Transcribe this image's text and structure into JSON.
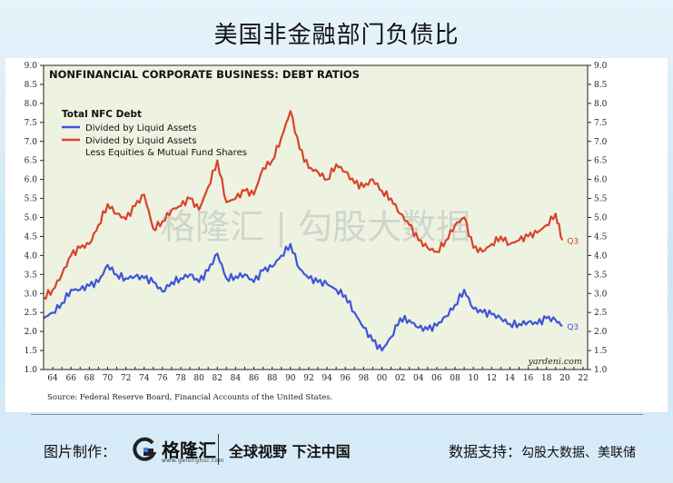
{
  "page": {
    "title": "美国非金融部门负债比",
    "source_note": "Source: Federal Reserve Board, Financial Accounts of the United States.",
    "watermark": "格隆汇 | 勾股大数据",
    "footer": {
      "made_by_label": "图片制作：",
      "logo_text": "格隆汇",
      "logo_sub": "www.gelonghui.com",
      "slogan": "全球视野 下注中国",
      "data_support_label": "数据支持：",
      "data_support_value": "勾股大数据、美联储"
    }
  },
  "chart_data": {
    "type": "line",
    "title": "NONFINANCIAL CORPORATE BUSINESS: DEBT RATIOS",
    "legend_title": "Total NFC Debt",
    "legend_position": "top-left",
    "credit": "yardeni.com",
    "x_ticks": [
      "64",
      "66",
      "68",
      "70",
      "72",
      "74",
      "76",
      "78",
      "80",
      "82",
      "84",
      "86",
      "88",
      "90",
      "92",
      "94",
      "96",
      "98",
      "00",
      "02",
      "04",
      "06",
      "08",
      "10",
      "12",
      "14",
      "16",
      "18",
      "20",
      "22"
    ],
    "xlim": [
      1963,
      2022.5
    ],
    "ylim": [
      1.0,
      9.0
    ],
    "y_ticks": [
      "1.0",
      "1.5",
      "2.0",
      "2.5",
      "3.0",
      "3.5",
      "4.0",
      "4.5",
      "5.0",
      "5.5",
      "6.0",
      "6.5",
      "7.0",
      "7.5",
      "8.0",
      "8.5",
      "9.0"
    ],
    "grid": false,
    "colors": {
      "blue": "#3d55d8",
      "red": "#d8442a",
      "plot_bg": "#eef2e1"
    },
    "series": [
      {
        "name": "Divided by Liquid Assets",
        "color": "#3d55d8",
        "end_label": "Q3",
        "x": [
          1963,
          1964,
          1965,
          1966,
          1967,
          1968,
          1969,
          1970,
          1971,
          1972,
          1973,
          1974,
          1975,
          1976,
          1977,
          1978,
          1979,
          1980,
          1981,
          1982,
          1983,
          1984,
          1985,
          1986,
          1987,
          1988,
          1989,
          1990,
          1991,
          1992,
          1993,
          1994,
          1995,
          1996,
          1997,
          1998,
          1999,
          2000,
          2001,
          2002,
          2003,
          2004,
          2005,
          2006,
          2007,
          2008,
          2009,
          2010,
          2011,
          2012,
          2013,
          2014,
          2015,
          2016,
          2017,
          2018,
          2019,
          2019.75
        ],
        "values": [
          2.35,
          2.5,
          2.75,
          3.1,
          3.1,
          3.2,
          3.3,
          3.75,
          3.5,
          3.4,
          3.45,
          3.4,
          3.3,
          3.05,
          3.3,
          3.4,
          3.5,
          3.3,
          3.6,
          4.05,
          3.4,
          3.45,
          3.5,
          3.3,
          3.6,
          3.7,
          4.0,
          4.3,
          3.65,
          3.4,
          3.3,
          3.25,
          3.1,
          2.95,
          2.5,
          2.1,
          1.75,
          1.5,
          1.85,
          2.35,
          2.3,
          2.1,
          2.05,
          2.15,
          2.4,
          2.7,
          3.1,
          2.6,
          2.5,
          2.45,
          2.35,
          2.2,
          2.2,
          2.25,
          2.2,
          2.35,
          2.3,
          2.15
        ]
      },
      {
        "name": "Divided by Liquid Assets Less Equities & Mutual Fund Shares",
        "color": "#d8442a",
        "end_label": "Q3",
        "x": [
          1963,
          1964,
          1965,
          1966,
          1967,
          1968,
          1969,
          1970,
          1971,
          1972,
          1973,
          1974,
          1975,
          1976,
          1977,
          1978,
          1979,
          1980,
          1981,
          1982,
          1983,
          1984,
          1985,
          1986,
          1987,
          1988,
          1989,
          1990,
          1991,
          1992,
          1993,
          1994,
          1995,
          1996,
          1997,
          1998,
          1999,
          2000,
          2001,
          2002,
          2003,
          2004,
          2005,
          2006,
          2007,
          2008,
          2009,
          2010,
          2011,
          2012,
          2013,
          2014,
          2015,
          2016,
          2017,
          2018,
          2019,
          2019.75
        ],
        "values": [
          2.9,
          3.1,
          3.5,
          4.0,
          4.2,
          4.3,
          4.8,
          5.35,
          5.1,
          4.95,
          5.3,
          5.6,
          4.7,
          4.9,
          5.2,
          5.3,
          5.5,
          5.2,
          5.8,
          6.5,
          5.4,
          5.5,
          5.7,
          5.6,
          6.3,
          6.5,
          7.1,
          7.8,
          6.8,
          6.3,
          6.2,
          6.0,
          6.4,
          6.2,
          5.9,
          5.8,
          6.0,
          5.7,
          5.5,
          5.1,
          4.8,
          4.4,
          4.2,
          4.1,
          4.4,
          4.8,
          5.0,
          4.2,
          4.1,
          4.3,
          4.5,
          4.3,
          4.4,
          4.5,
          4.6,
          4.8,
          5.1,
          4.4
        ]
      }
    ]
  }
}
